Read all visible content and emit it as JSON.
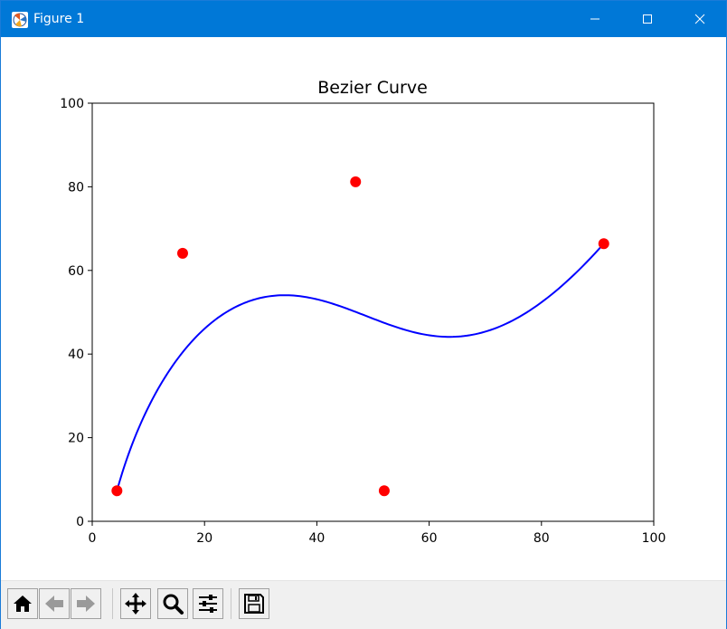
{
  "window": {
    "title": "Figure 1"
  },
  "toolbar": {
    "buttons": [
      {
        "icon": "home-icon"
      },
      {
        "icon": "back-arrow-icon"
      },
      {
        "icon": "forward-arrow-icon"
      },
      {
        "icon": "pan-icon"
      },
      {
        "icon": "zoom-icon"
      },
      {
        "icon": "configure-subplots-icon"
      },
      {
        "icon": "save-icon"
      }
    ]
  },
  "chart_data": {
    "type": "line",
    "title": "Bezier Curve",
    "xlabel": "",
    "ylabel": "",
    "xlim": [
      0,
      100
    ],
    "ylim": [
      0,
      100
    ],
    "xticks": [
      "0",
      "20",
      "40",
      "60",
      "80",
      "100"
    ],
    "yticks": [
      "0",
      "20",
      "40",
      "60",
      "80",
      "100"
    ],
    "grid": false,
    "control_points": {
      "color": "#ff0000",
      "x": [
        4.4,
        16.1,
        46.9,
        52.0,
        91.1
      ],
      "y": [
        7.3,
        64.1,
        81.2,
        7.3,
        66.4
      ]
    },
    "curve": {
      "color": "#0000ff",
      "description": "Bezier curve through control points"
    }
  }
}
